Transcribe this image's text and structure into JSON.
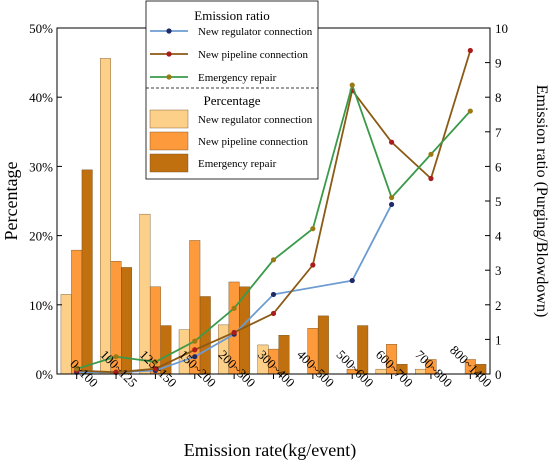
{
  "chart_data": {
    "type": "bar+line",
    "xlabel": "Emission rate(kg/event)",
    "ylabel": "Percentage",
    "y2label": "Emission ratio (Purging/Blowdown)",
    "categories": [
      "0~100",
      "100~125",
      "125~150",
      "150~200",
      "200~300",
      "300~400",
      "400~500",
      "500~600",
      "600~700",
      "700~800",
      "800~1400"
    ],
    "ylim": [
      0,
      50
    ],
    "yticks": [
      "0%",
      "10%",
      "20%",
      "30%",
      "40%",
      "50%"
    ],
    "yticks_values": [
      0,
      10,
      20,
      30,
      40,
      50
    ],
    "y2lim": [
      0,
      10
    ],
    "y2ticks": [
      "0",
      "1",
      "2",
      "3",
      "4",
      "5",
      "6",
      "7",
      "8",
      "9",
      "10"
    ],
    "y2ticks_values": [
      0,
      1,
      2,
      3,
      4,
      5,
      6,
      7,
      8,
      9,
      10
    ],
    "bar_series": [
      {
        "name": "New regulator connection",
        "color": "#FDD08A",
        "values": [
          11.5,
          45.6,
          23.1,
          6.4,
          7.1,
          4.2,
          0,
          0,
          0.7,
          0.7,
          0
        ]
      },
      {
        "name": "New pipeline connection",
        "color": "#FD9A3B",
        "values": [
          17.9,
          16.3,
          12.6,
          19.3,
          13.3,
          3.6,
          6.6,
          0.7,
          4.3,
          2.1,
          2.1
        ]
      },
      {
        "name": "Emergency repair",
        "color": "#C0700F",
        "values": [
          29.5,
          15.4,
          7.0,
          11.2,
          12.6,
          5.6,
          8.4,
          7.0,
          1.4,
          0,
          1.4
        ]
      }
    ],
    "line_series": [
      {
        "name": "New regulator connection",
        "color": "#6C9BD2",
        "marker": "#1F2A66",
        "points": [
          [
            0,
            0.05
          ],
          [
            1,
            0.05
          ],
          [
            2,
            0.1
          ],
          [
            3,
            0.5
          ],
          [
            4,
            1.15
          ],
          [
            5,
            2.3
          ],
          [
            7,
            2.7
          ],
          [
            8,
            4.9
          ]
        ]
      },
      {
        "name": "New pipeline connection",
        "color": "#8B5A14",
        "marker": "#A81C1C",
        "points": [
          [
            0,
            0.1
          ],
          [
            1,
            0.05
          ],
          [
            2,
            0.15
          ],
          [
            3,
            0.7
          ],
          [
            4,
            1.2
          ],
          [
            5,
            1.75
          ],
          [
            6,
            3.15
          ],
          [
            7,
            8.2
          ],
          [
            8,
            6.7
          ],
          [
            9,
            5.65
          ],
          [
            10,
            9.35
          ]
        ]
      },
      {
        "name": "Emergency repair",
        "color": "#3A9A4A",
        "marker": "#9A7A14",
        "points": [
          [
            0,
            0.15
          ],
          [
            1,
            0.5
          ],
          [
            2,
            0.35
          ],
          [
            3,
            0.95
          ],
          [
            4,
            1.9
          ],
          [
            5,
            3.3
          ],
          [
            6,
            4.2
          ],
          [
            7,
            8.35
          ],
          [
            8,
            5.1
          ],
          [
            9,
            6.35
          ],
          [
            10,
            7.6
          ]
        ]
      }
    ],
    "legend": {
      "placement": "top-center",
      "line_title": "Emission ratio",
      "bar_title": "Percentage"
    }
  }
}
